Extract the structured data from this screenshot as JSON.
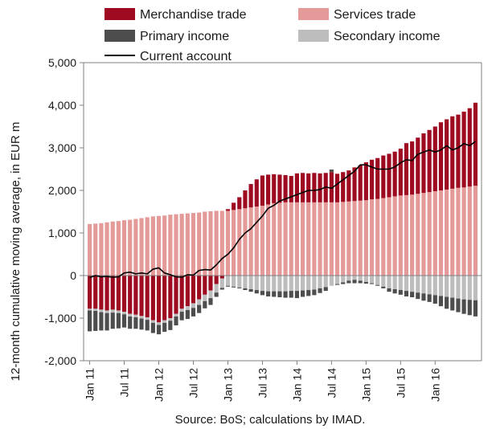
{
  "chart_data": {
    "type": "bar",
    "subtype": "stacked bar with line",
    "ylabel": "12-month cumulative moving average, in EUR m",
    "source": "Source: BoS; calculations by IMAD.",
    "ylim": [
      -2000,
      5000
    ],
    "yticks": [
      -2000,
      -1000,
      0,
      1000,
      2000,
      3000,
      4000,
      5000
    ],
    "ytick_labels": [
      "-2,000",
      "-1,000",
      "0",
      "1,000",
      "2,000",
      "3,000",
      "4,000",
      "5,000"
    ],
    "xtick_labels": [
      {
        "index": 0,
        "label": "Jan 11"
      },
      {
        "index": 6,
        "label": "Jul 11"
      },
      {
        "index": 12,
        "label": "Jan 12"
      },
      {
        "index": 18,
        "label": "Jul 12"
      },
      {
        "index": 24,
        "label": "Jan 13"
      },
      {
        "index": 30,
        "label": "Jul 13"
      },
      {
        "index": 36,
        "label": "Jan 14"
      },
      {
        "index": 42,
        "label": "Jul 14"
      },
      {
        "index": 48,
        "label": "Jan 15"
      },
      {
        "index": 54,
        "label": "Jul 15"
      },
      {
        "index": 60,
        "label": "Jan 16"
      }
    ],
    "legend_position": "top",
    "grid": false,
    "colors": {
      "merchandise": "#9e0a1f",
      "services": "#e39a98",
      "primary": "#4d4d4d",
      "secondary": "#bdbdbd",
      "current": "#000000"
    },
    "series": [
      {
        "key": "merchandise",
        "name": "Merchandise trade",
        "kind": "bar",
        "values": [
          -780,
          -780,
          -800,
          -820,
          -800,
          -820,
          -850,
          -900,
          -920,
          -950,
          -980,
          -1050,
          -1100,
          -1050,
          -1000,
          -900,
          -780,
          -720,
          -650,
          -560,
          -450,
          -350,
          -200,
          -70,
          40,
          170,
          280,
          420,
          550,
          640,
          710,
          700,
          680,
          660,
          640,
          620,
          680,
          690,
          680,
          690,
          680,
          690,
          710,
          670,
          700,
          730,
          790,
          830,
          890,
          930,
          960,
          1000,
          1020,
          1050,
          1100,
          1220,
          1250,
          1320,
          1400,
          1460,
          1520,
          1600,
          1650,
          1700,
          1720,
          1780,
          1840,
          1950
        ]
      },
      {
        "key": "services",
        "name": "Services trade",
        "kind": "bar",
        "values": [
          1210,
          1220,
          1230,
          1250,
          1270,
          1280,
          1300,
          1310,
          1330,
          1350,
          1370,
          1390,
          1400,
          1410,
          1430,
          1440,
          1450,
          1460,
          1470,
          1480,
          1500,
          1510,
          1520,
          1520,
          1520,
          1540,
          1560,
          1580,
          1600,
          1620,
          1640,
          1670,
          1700,
          1710,
          1720,
          1720,
          1720,
          1720,
          1720,
          1720,
          1720,
          1720,
          1720,
          1720,
          1730,
          1740,
          1750,
          1760,
          1770,
          1790,
          1800,
          1820,
          1840,
          1860,
          1880,
          1890,
          1900,
          1920,
          1940,
          1960,
          1980,
          2000,
          2020,
          2040,
          2060,
          2070,
          2090,
          2110
        ]
      },
      {
        "key": "primary",
        "name": "Primary income",
        "kind": "bar",
        "values": [
          -490,
          -470,
          -430,
          -410,
          -380,
          -360,
          -310,
          -290,
          -270,
          -260,
          -250,
          -240,
          -220,
          -210,
          -220,
          -210,
          -200,
          -210,
          -200,
          -190,
          -170,
          -160,
          -100,
          -40,
          -20,
          -20,
          -20,
          -40,
          -60,
          -80,
          -100,
          -120,
          -130,
          -140,
          -150,
          -160,
          -170,
          -150,
          -140,
          -130,
          -110,
          -90,
          60,
          -20,
          -40,
          -60,
          -80,
          -60,
          -40,
          -20,
          -20,
          -40,
          -80,
          -100,
          -110,
          -130,
          -130,
          -150,
          -170,
          -180,
          -200,
          -240,
          -280,
          -300,
          -320,
          -340,
          -360,
          -380
        ]
      },
      {
        "key": "secondary",
        "name": "Secondary income",
        "kind": "bar",
        "values": [
          -40,
          -50,
          -60,
          -60,
          -70,
          -60,
          -60,
          -60,
          -60,
          -60,
          -60,
          -60,
          -60,
          -60,
          -60,
          -60,
          -70,
          -90,
          -110,
          -130,
          -150,
          -180,
          -200,
          -220,
          -240,
          -260,
          -280,
          -300,
          -320,
          -340,
          -360,
          -370,
          -370,
          -370,
          -370,
          -360,
          -360,
          -350,
          -340,
          -330,
          -300,
          -270,
          -240,
          -200,
          -160,
          -120,
          -100,
          -120,
          -150,
          -180,
          -220,
          -260,
          -300,
          -320,
          -340,
          -360,
          -380,
          -400,
          -420,
          -440,
          -460,
          -480,
          -500,
          -520,
          -540,
          -560,
          -570,
          -580
        ]
      },
      {
        "key": "current",
        "name": "Current account",
        "kind": "line",
        "values": [
          -50,
          0,
          -30,
          -20,
          -40,
          -30,
          60,
          80,
          40,
          60,
          40,
          150,
          180,
          60,
          20,
          -30,
          -40,
          20,
          10,
          120,
          140,
          130,
          250,
          400,
          500,
          650,
          850,
          1000,
          1100,
          1250,
          1400,
          1580,
          1650,
          1750,
          1800,
          1850,
          1900,
          1950,
          2000,
          2000,
          2020,
          2080,
          2050,
          2150,
          2250,
          2350,
          2450,
          2600,
          2600,
          2550,
          2500,
          2500,
          2500,
          2550,
          2650,
          2720,
          2700,
          2850,
          2900,
          2950,
          2900,
          2950,
          3050,
          2950,
          3000,
          3100,
          3050,
          3150
        ]
      }
    ]
  }
}
